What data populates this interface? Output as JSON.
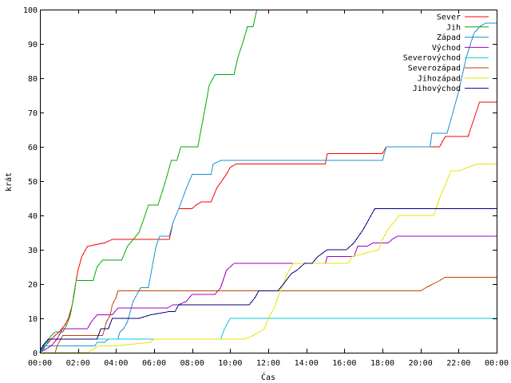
{
  "chart_data": {
    "type": "line",
    "title": "",
    "xlabel": "Čas",
    "ylabel": "krát",
    "xlim": [
      0,
      24
    ],
    "ylim": [
      0,
      100
    ],
    "x_unit": "hours",
    "x_ticks": [
      0,
      2,
      4,
      6,
      8,
      10,
      12,
      14,
      16,
      18,
      20,
      22,
      24
    ],
    "x_tick_labels": [
      "00:00",
      "02:00",
      "04:00",
      "06:00",
      "08:00",
      "10:00",
      "12:00",
      "14:00",
      "16:00",
      "18:00",
      "20:00",
      "22:00",
      "00:00"
    ],
    "y_ticks": [
      0,
      10,
      20,
      30,
      40,
      50,
      60,
      70,
      80,
      90,
      100
    ],
    "y_tick_labels": [
      "0",
      "10",
      "20",
      "30",
      "40",
      "50",
      "60",
      "70",
      "80",
      "90",
      "100"
    ],
    "grid": false,
    "legend_position": "top-right",
    "series": [
      {
        "name": "Sever",
        "color": "#ff0000",
        "points": [
          [
            0,
            0
          ],
          [
            0.15,
            1
          ],
          [
            0.3,
            2
          ],
          [
            0.6,
            4
          ],
          [
            1.0,
            6
          ],
          [
            1.3,
            8
          ],
          [
            1.5,
            10
          ],
          [
            1.7,
            14
          ],
          [
            1.9,
            21
          ],
          [
            2.0,
            24
          ],
          [
            2.2,
            28
          ],
          [
            2.5,
            31
          ],
          [
            3.4,
            32
          ],
          [
            3.8,
            33
          ],
          [
            6.8,
            33
          ],
          [
            7.0,
            38
          ],
          [
            7.3,
            42
          ],
          [
            8.0,
            42
          ],
          [
            8.2,
            43
          ],
          [
            8.5,
            44
          ],
          [
            9.0,
            44
          ],
          [
            9.3,
            48
          ],
          [
            9.8,
            52
          ],
          [
            10.0,
            54
          ],
          [
            10.3,
            55
          ],
          [
            15.0,
            55
          ],
          [
            15.1,
            58
          ],
          [
            18.0,
            58
          ],
          [
            18.2,
            60
          ],
          [
            21.0,
            60
          ],
          [
            21.3,
            63
          ],
          [
            22.5,
            63
          ],
          [
            22.8,
            68
          ],
          [
            23.1,
            73
          ],
          [
            24.0,
            73
          ]
        ]
      },
      {
        "name": "Jih",
        "color": "#00aa00",
        "points": [
          [
            0,
            0
          ],
          [
            0.2,
            2
          ],
          [
            0.6,
            5
          ],
          [
            0.8,
            6
          ],
          [
            1.2,
            6
          ],
          [
            1.4,
            8
          ],
          [
            1.6,
            11
          ],
          [
            1.8,
            17
          ],
          [
            1.9,
            21
          ],
          [
            2.8,
            21
          ],
          [
            3.0,
            25
          ],
          [
            3.3,
            27
          ],
          [
            4.3,
            27
          ],
          [
            4.6,
            31
          ],
          [
            4.9,
            33
          ],
          [
            5.2,
            35
          ],
          [
            5.4,
            38
          ],
          [
            5.7,
            43
          ],
          [
            6.2,
            43
          ],
          [
            6.6,
            50
          ],
          [
            6.9,
            56
          ],
          [
            7.2,
            56
          ],
          [
            7.4,
            60
          ],
          [
            8.3,
            60
          ],
          [
            8.6,
            69
          ],
          [
            8.9,
            78
          ],
          [
            9.2,
            81
          ],
          [
            10.2,
            81
          ],
          [
            10.4,
            86
          ],
          [
            10.7,
            91
          ],
          [
            10.9,
            95
          ],
          [
            11.2,
            95
          ],
          [
            11.4,
            100
          ]
        ]
      },
      {
        "name": "Západ",
        "color": "#1e90d0",
        "points": [
          [
            0,
            0
          ],
          [
            0.1,
            1
          ],
          [
            0.25,
            2
          ],
          [
            0.5,
            2
          ],
          [
            1.2,
            2
          ],
          [
            2.0,
            2
          ],
          [
            2.9,
            2
          ],
          [
            3.0,
            3
          ],
          [
            3.4,
            3
          ],
          [
            3.6,
            4
          ],
          [
            4.1,
            4
          ],
          [
            4.2,
            6
          ],
          [
            4.4,
            7
          ],
          [
            4.6,
            9
          ],
          [
            4.9,
            15
          ],
          [
            5.1,
            17
          ],
          [
            5.3,
            19
          ],
          [
            5.7,
            19
          ],
          [
            5.9,
            25
          ],
          [
            6.1,
            31
          ],
          [
            6.3,
            34
          ],
          [
            6.8,
            34
          ],
          [
            7.0,
            38
          ],
          [
            7.3,
            42
          ],
          [
            7.7,
            48
          ],
          [
            8.0,
            52
          ],
          [
            9.0,
            52
          ],
          [
            9.1,
            55
          ],
          [
            9.5,
            56
          ],
          [
            18.0,
            56
          ],
          [
            18.2,
            60
          ],
          [
            20.5,
            60
          ],
          [
            20.6,
            64
          ],
          [
            21.4,
            64
          ],
          [
            21.6,
            68
          ],
          [
            22.0,
            76
          ],
          [
            22.4,
            86
          ],
          [
            22.8,
            93
          ],
          [
            23.1,
            95
          ],
          [
            23.4,
            96
          ],
          [
            24.0,
            96
          ]
        ]
      },
      {
        "name": "Východ",
        "color": "#a000c0",
        "points": [
          [
            0,
            0
          ],
          [
            0.3,
            1
          ],
          [
            0.6,
            2
          ],
          [
            0.9,
            4
          ],
          [
            1.2,
            7
          ],
          [
            2.5,
            7
          ],
          [
            2.7,
            9
          ],
          [
            3.0,
            11
          ],
          [
            3.8,
            11
          ],
          [
            4.1,
            13
          ],
          [
            6.7,
            13
          ],
          [
            7.0,
            14
          ],
          [
            7.3,
            14
          ],
          [
            7.7,
            15
          ],
          [
            8.0,
            17
          ],
          [
            9.2,
            17
          ],
          [
            9.5,
            19
          ],
          [
            9.8,
            24
          ],
          [
            10.2,
            26
          ],
          [
            15.0,
            26
          ],
          [
            15.1,
            28
          ],
          [
            16.5,
            28
          ],
          [
            16.7,
            31
          ],
          [
            17.2,
            31
          ],
          [
            17.5,
            32
          ],
          [
            18.3,
            32
          ],
          [
            18.5,
            33
          ],
          [
            18.8,
            34
          ],
          [
            24.0,
            34
          ]
        ]
      },
      {
        "name": "Severovýchod",
        "color": "#00c8d8",
        "points": [
          [
            0,
            0
          ],
          [
            0.2,
            1
          ],
          [
            0.3,
            2
          ],
          [
            0.5,
            4
          ],
          [
            0.8,
            4
          ],
          [
            6.0,
            4
          ],
          [
            9.5,
            4
          ],
          [
            9.7,
            7
          ],
          [
            10.0,
            10
          ],
          [
            24.0,
            10
          ]
        ]
      },
      {
        "name": "Severozápad",
        "color": "#c04000",
        "points": [
          [
            0,
            0
          ],
          [
            0.8,
            0
          ],
          [
            0.9,
            2
          ],
          [
            1.0,
            3
          ],
          [
            1.1,
            4
          ],
          [
            1.2,
            5
          ],
          [
            2.0,
            5
          ],
          [
            3.0,
            5
          ],
          [
            3.3,
            5
          ],
          [
            3.5,
            9
          ],
          [
            3.7,
            11
          ],
          [
            3.8,
            14
          ],
          [
            4.0,
            16
          ],
          [
            4.1,
            18
          ],
          [
            18.0,
            18
          ],
          [
            18.1,
            18
          ],
          [
            20.0,
            18
          ],
          [
            20.3,
            19
          ],
          [
            21.0,
            21
          ],
          [
            21.3,
            22
          ],
          [
            24.0,
            22
          ]
        ]
      },
      {
        "name": "Jihozápad",
        "color": "#e6e600",
        "points": [
          [
            0,
            0
          ],
          [
            2.5,
            0
          ],
          [
            2.8,
            1
          ],
          [
            3.1,
            2
          ],
          [
            4.0,
            2
          ],
          [
            5.8,
            3
          ],
          [
            6.0,
            4
          ],
          [
            10.8,
            4
          ],
          [
            11.2,
            5
          ],
          [
            11.8,
            7
          ],
          [
            12.0,
            10
          ],
          [
            12.3,
            13
          ],
          [
            12.7,
            19
          ],
          [
            13.0,
            23
          ],
          [
            13.3,
            26
          ],
          [
            16.2,
            26
          ],
          [
            16.4,
            28
          ],
          [
            17.8,
            30
          ],
          [
            18.0,
            33
          ],
          [
            18.3,
            36
          ],
          [
            18.6,
            38
          ],
          [
            18.9,
            40
          ],
          [
            20.7,
            40
          ],
          [
            21.0,
            45
          ],
          [
            21.3,
            49
          ],
          [
            21.6,
            53
          ],
          [
            22.0,
            53
          ],
          [
            22.5,
            54
          ],
          [
            23.0,
            55
          ],
          [
            24.0,
            55
          ]
        ]
      },
      {
        "name": "Jihovýchod",
        "color": "#000080",
        "points": [
          [
            0,
            0
          ],
          [
            0.05,
            1
          ],
          [
            0.15,
            2
          ],
          [
            0.3,
            3
          ],
          [
            0.45,
            4
          ],
          [
            1.0,
            4
          ],
          [
            2.0,
            4
          ],
          [
            3.0,
            4
          ],
          [
            3.2,
            7
          ],
          [
            3.6,
            7
          ],
          [
            3.8,
            10
          ],
          [
            5.2,
            10
          ],
          [
            5.8,
            11
          ],
          [
            6.8,
            12
          ],
          [
            7.1,
            12
          ],
          [
            7.3,
            14
          ],
          [
            11.0,
            14
          ],
          [
            11.3,
            16
          ],
          [
            11.5,
            18
          ],
          [
            12.5,
            18
          ],
          [
            12.8,
            20
          ],
          [
            13.2,
            23
          ],
          [
            13.5,
            24
          ],
          [
            13.9,
            26
          ],
          [
            14.3,
            26
          ],
          [
            14.6,
            28
          ],
          [
            15.1,
            30
          ],
          [
            16.1,
            30
          ],
          [
            16.5,
            32
          ],
          [
            17.0,
            36
          ],
          [
            17.3,
            39
          ],
          [
            17.6,
            42
          ],
          [
            24.0,
            42
          ]
        ]
      }
    ]
  }
}
